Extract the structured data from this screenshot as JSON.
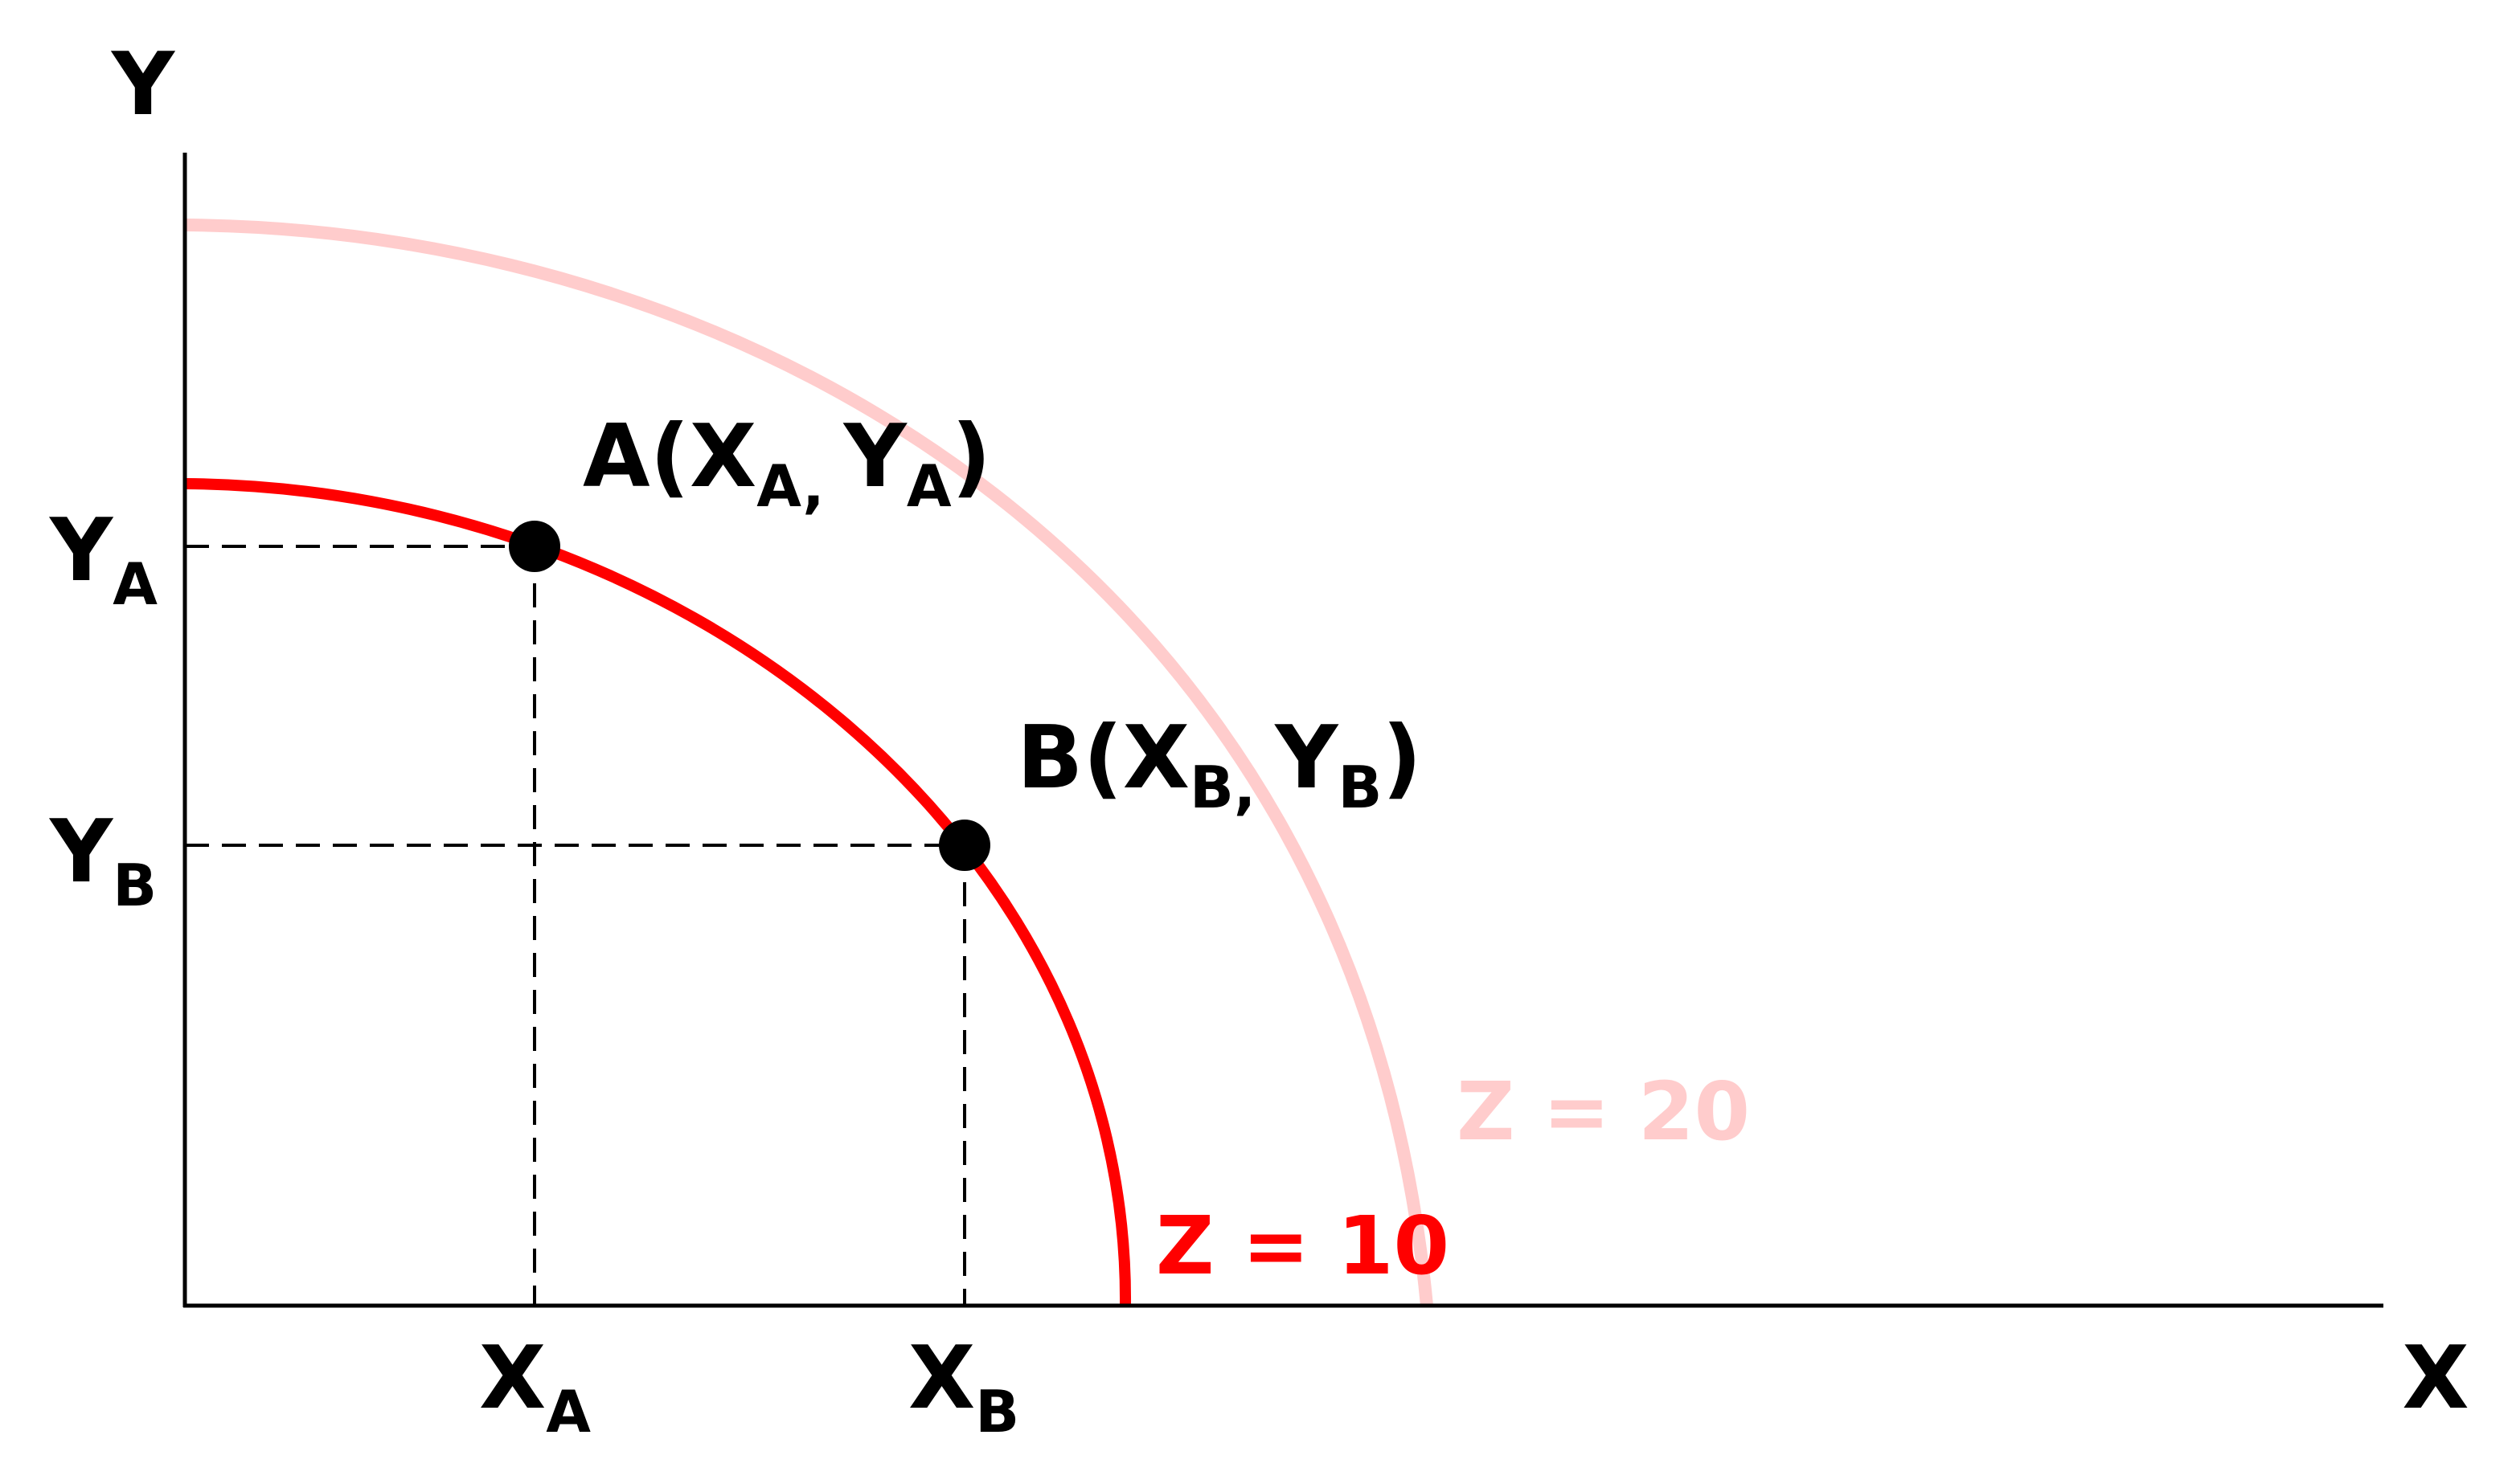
{
  "axes": {
    "x_label": "X",
    "y_label": "Y",
    "color": "#000000"
  },
  "curves": [
    {
      "label": "Z = 20",
      "color": "#ffcccc"
    },
    {
      "label": "Z = 10",
      "color": "#ff0000"
    }
  ],
  "points": [
    {
      "name": "A",
      "x_sym": "X",
      "x_sub": "A",
      "y_sym": "Y",
      "y_sub": "A",
      "open": "(",
      "sep": ",",
      "close": ")",
      "color": "#000000"
    },
    {
      "name": "B",
      "x_sym": "X",
      "x_sub": "B",
      "y_sym": "Y",
      "y_sub": "B",
      "open": "(",
      "sep": ",",
      "close": ")",
      "color": "#000000"
    }
  ],
  "guide_color": "#000000"
}
